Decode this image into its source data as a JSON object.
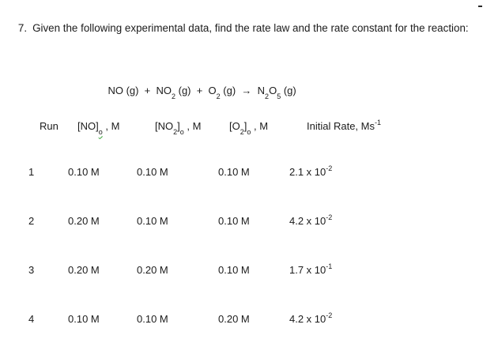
{
  "title": {
    "number": "7.",
    "text": "Given the following experimental data, find the rate law and the rate constant for the reaction:"
  },
  "equation": {
    "p0": "NO (g)  +  NO",
    "s0": "2",
    "p1": " (g)  +  O",
    "s1": "2",
    "p2": " (g)  ",
    "arrow": "→",
    "p3": "  N",
    "s2": "2",
    "p4": "O",
    "s3": "5",
    "p5": " (g)"
  },
  "table": {
    "headers": {
      "run": "Run",
      "no_pre": "[NO]",
      "no_sub": "o",
      "no_post": " , M",
      "no2_pre": "[NO",
      "no2_sub2": "2",
      "no2_mid": "]",
      "no2_sub": "o",
      "no2_post": " , M",
      "o2_pre": "[O",
      "o2_sub2": "2",
      "o2_mid": "]",
      "o2_sub": "o",
      "o2_post": " , M",
      "rate_pre": "Initial Rate, Ms",
      "rate_sup": "-1"
    },
    "rows": [
      {
        "run": "1",
        "no": "0.10 M",
        "no2": "0.10 M",
        "o2": "0.10 M",
        "rate_base": "2.1 x 10",
        "rate_exp": "-2"
      },
      {
        "run": "2",
        "no": "0.20 M",
        "no2": "0.10 M",
        "o2": "0.10 M",
        "rate_base": "4.2 x 10",
        "rate_exp": "-2"
      },
      {
        "run": "3",
        "no": "0.20 M",
        "no2": "0.20 M",
        "o2": "0.10 M",
        "rate_base": "1.7 x 10",
        "rate_exp": "-1"
      },
      {
        "run": "4",
        "no": "0.10 M",
        "no2": "0.10 M",
        "o2": "0.20 M",
        "rate_base": "4.2 x 10",
        "rate_exp": "-2"
      }
    ]
  },
  "colors": {
    "text": "#1b1b1b",
    "spellcheck_squiggle": "#2e9e2e",
    "background": "#ffffff"
  }
}
